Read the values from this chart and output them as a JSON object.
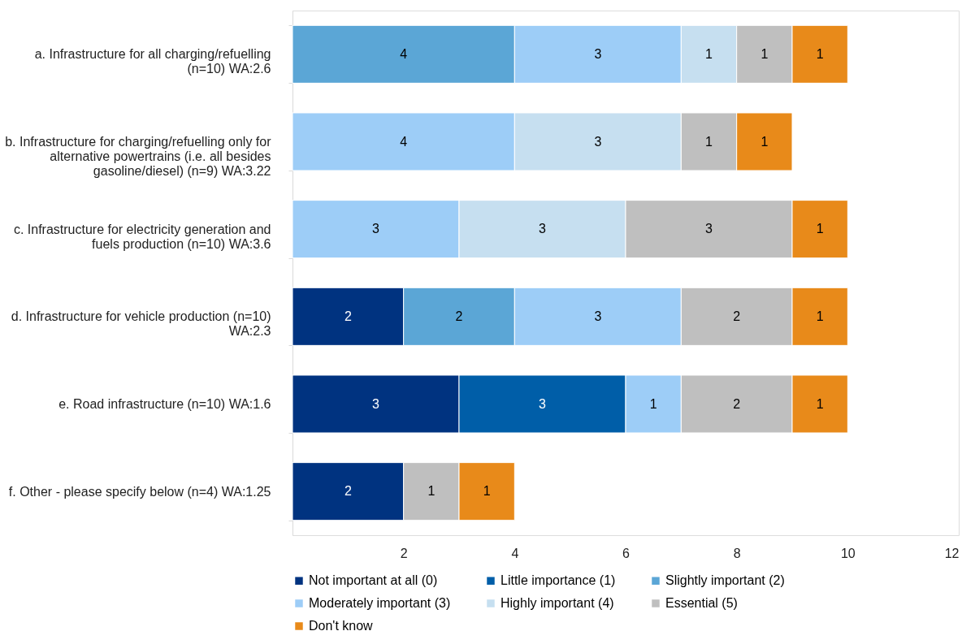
{
  "chart_data": {
    "type": "bar",
    "orientation": "horizontal",
    "stacked": true,
    "data_labels": true,
    "legend": "bottom",
    "grid": false,
    "categories": [
      "a. Infrastructure for all charging/refuelling  (n=10) WA:2.6",
      "b. Infrastructure for charging/refuelling only for alternative powertrains (i.e. all besides gasoline/diesel) (n=9) WA:3.22",
      "c. Infrastructure for electricity generation and fuels production (n=10) WA:3.6",
      "d. Infrastructure for vehicle production (n=10) WA:2.3",
      "e. Road infrastructure (n=10) WA:1.6",
      "f. Other - please specify below (n=4) WA:1.25"
    ],
    "xlim": [
      0,
      12
    ],
    "xticks": [
      2,
      4,
      6,
      8,
      10,
      12
    ],
    "series": [
      {
        "name": "Not important at all (0)",
        "color": "#003380",
        "values": [
          null,
          null,
          null,
          2,
          3,
          2
        ]
      },
      {
        "name": "Little importance (1)",
        "color": "#005ea8",
        "values": [
          null,
          null,
          null,
          null,
          3,
          null
        ]
      },
      {
        "name": "Slightly important (2)",
        "color": "#5ba6d6",
        "values": [
          4,
          null,
          null,
          2,
          null,
          null
        ]
      },
      {
        "name": "Moderately important (3)",
        "color": "#9dcdf7",
        "values": [
          3,
          4,
          3,
          3,
          1,
          null
        ]
      },
      {
        "name": "Highly important (4)",
        "color": "#c6dff0",
        "values": [
          1,
          3,
          3,
          null,
          null,
          null
        ]
      },
      {
        "name": "Essential (5)",
        "color": "#bfbfbf",
        "values": [
          1,
          1,
          3,
          2,
          2,
          1
        ]
      },
      {
        "name": "Don't know",
        "color": "#e88a1a",
        "values": [
          1,
          1,
          1,
          1,
          1,
          1
        ]
      }
    ]
  }
}
